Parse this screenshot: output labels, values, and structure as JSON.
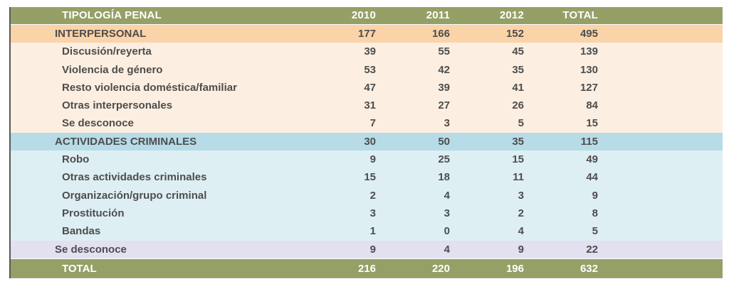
{
  "table": {
    "columns": [
      "TIPOLOGÍA PENAL",
      "2010",
      "2011",
      "2012",
      "TOTAL"
    ],
    "rows": [
      {
        "label": "INTERPERSONAL",
        "values": [
          "177",
          "166",
          "152",
          "495"
        ],
        "style": "section-orange sep",
        "indent": "lvl1"
      },
      {
        "label": "Discusión/reyerta",
        "values": [
          "39",
          "55",
          "45",
          "139"
        ],
        "style": "row-orange",
        "indent": "lvl2"
      },
      {
        "label": "Violencia de género",
        "values": [
          "53",
          "42",
          "35",
          "130"
        ],
        "style": "row-orange",
        "indent": "lvl2"
      },
      {
        "label": "Resto violencia doméstica/familiar",
        "values": [
          "47",
          "39",
          "41",
          "127"
        ],
        "style": "row-orange",
        "indent": "lvl2"
      },
      {
        "label": "Otras interpersonales",
        "values": [
          "31",
          "27",
          "26",
          "84"
        ],
        "style": "row-orange",
        "indent": "lvl2"
      },
      {
        "label": "Se desconoce",
        "values": [
          "7",
          "3",
          "5",
          "15"
        ],
        "style": "row-orange",
        "indent": "lvl2"
      },
      {
        "label": "ACTIVIDADES CRIMINALES",
        "values": [
          "30",
          "50",
          "35",
          "115"
        ],
        "style": "section-blue",
        "indent": "lvl1"
      },
      {
        "label": "Robo",
        "values": [
          "9",
          "25",
          "15",
          "49"
        ],
        "style": "row-blue",
        "indent": "lvl2"
      },
      {
        "label": "Otras actividades criminales",
        "values": [
          "15",
          "18",
          "11",
          "44"
        ],
        "style": "row-blue",
        "indent": "lvl2"
      },
      {
        "label": "Organización/grupo criminal",
        "values": [
          "2",
          "4",
          "3",
          "9"
        ],
        "style": "row-blue",
        "indent": "lvl2"
      },
      {
        "label": "Prostitución",
        "values": [
          "3",
          "3",
          "2",
          "8"
        ],
        "style": "row-blue",
        "indent": "lvl2"
      },
      {
        "label": "Bandas",
        "values": [
          "1",
          "0",
          "4",
          "5"
        ],
        "style": "row-blue",
        "indent": "lvl2"
      },
      {
        "label": "Se desconoce",
        "values": [
          "9",
          "4",
          "9",
          "22"
        ],
        "style": "section-lavender",
        "indent": "lvl1"
      },
      {
        "label": "TOTAL",
        "values": [
          "216",
          "220",
          "196",
          "632"
        ],
        "style": "olive sep",
        "indent": "lvl2"
      }
    ]
  },
  "colors": {
    "olive": "#94a066",
    "orange": "#fbd3a8",
    "orange-light": "#fcefe1",
    "blue": "#b7dce7",
    "blue-light": "#deeff3",
    "lavender": "#e3e0f0",
    "text-dark": "#4d4d4d",
    "text-light": "#ffffff",
    "border-dark": "#595959",
    "border-light": "#a6a6a6"
  }
}
